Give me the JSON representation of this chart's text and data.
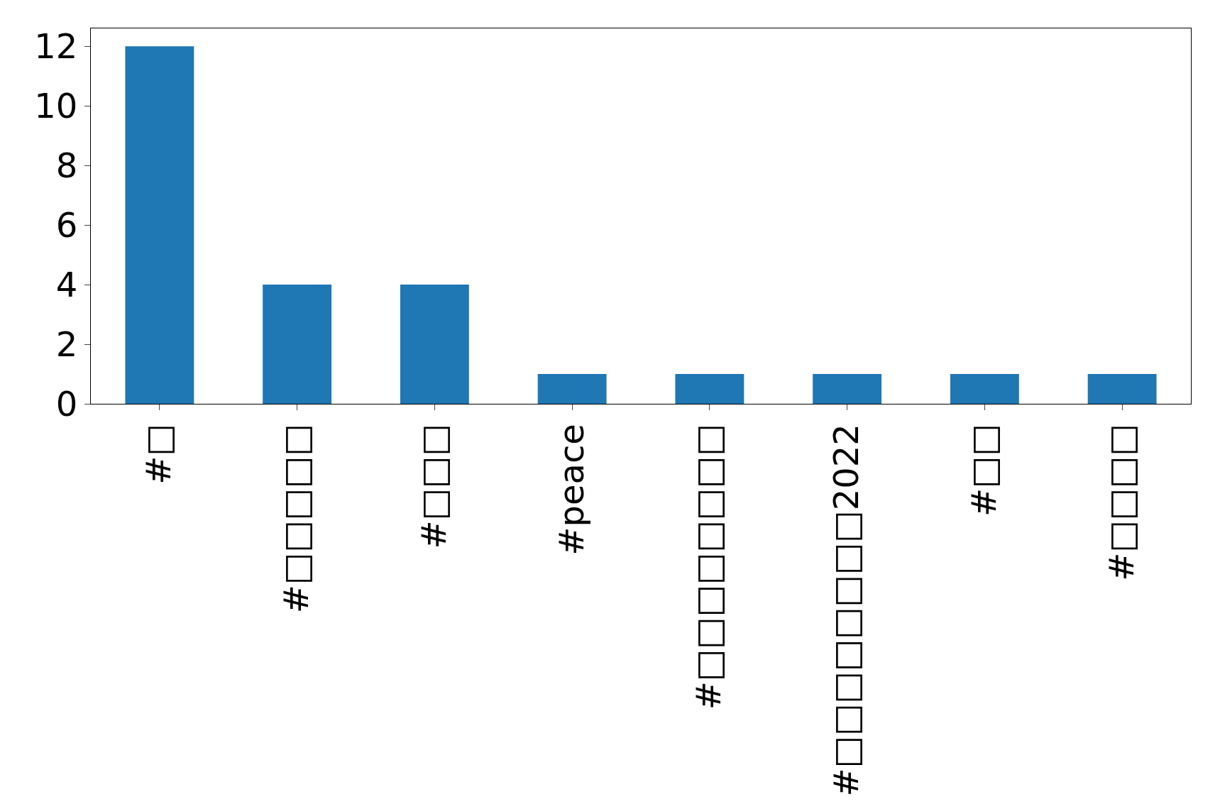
{
  "chart_data": {
    "type": "bar",
    "categories": [
      "#□",
      "#□□□□□",
      "#□□□",
      "#peace",
      "#□□□□□□□□",
      "#□□□□□□□□2022",
      "#□□",
      "#□□□□"
    ],
    "values": [
      12,
      4,
      4,
      1,
      1,
      1,
      1,
      1
    ],
    "color": "#1f77b4",
    "ylim": [
      0,
      12.6
    ],
    "yticks": [
      0,
      2,
      4,
      6,
      8,
      10,
      12
    ]
  }
}
